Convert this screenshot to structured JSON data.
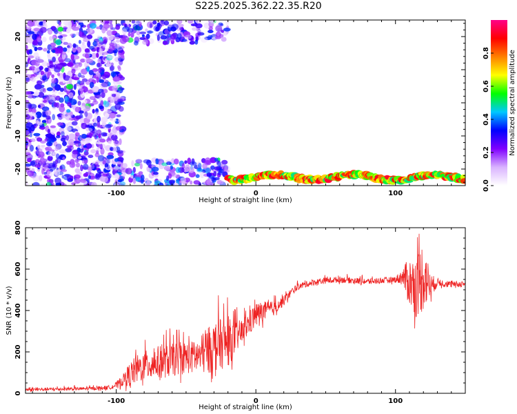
{
  "title": "S225.2025.362.22.35.R20",
  "chart_data": [
    {
      "type": "heatmap",
      "xlabel": "Height of straight line (km)",
      "ylabel": "Frequency (Hz)",
      "xlim": [
        -165,
        150
      ],
      "ylim": [
        -25,
        25
      ],
      "x_ticks": [
        -100,
        0,
        100
      ],
      "y_ticks": [
        -20,
        -10,
        0,
        10,
        20
      ],
      "colorbar": {
        "label": "Normalized spectral amplitude",
        "range": [
          0,
          1
        ],
        "ticks": [
          0.0,
          0.2,
          0.4,
          0.6,
          0.8
        ],
        "colors": [
          "#ffffff",
          "#d9b3ff",
          "#8000ff",
          "#0000ff",
          "#00c8ff",
          "#00ff00",
          "#ffff00",
          "#ff8000",
          "#ff0000",
          "#ff0088"
        ]
      },
      "features": [
        {
          "name": "broadband noise, left region",
          "x_range": [
            -165,
            -95
          ],
          "y_range": [
            -25,
            25
          ],
          "amplitude": 0.15
        },
        {
          "name": "upper noise band",
          "x_range": [
            -95,
            -20
          ],
          "y_range": [
            18,
            25
          ],
          "amplitude": 0.15
        },
        {
          "name": "lower noise band",
          "x_range": [
            -100,
            -20
          ],
          "y_range": [
            -25,
            -17
          ],
          "amplitude": 0.18
        },
        {
          "name": "persistent spectral line",
          "x_range": [
            -20,
            150
          ],
          "y_range": [
            -24,
            -21
          ],
          "amplitude": 0.9
        }
      ]
    },
    {
      "type": "line",
      "xlabel": "Height of straight line (km)",
      "ylabel": "SNR (10 * v/v)",
      "xlim": [
        -165,
        150
      ],
      "ylim": [
        0,
        800
      ],
      "x_ticks": [
        -100,
        0,
        100
      ],
      "y_ticks": [
        0,
        200,
        400,
        600,
        800
      ],
      "series": [
        {
          "name": "SNR",
          "color": "#ee2222",
          "x": [
            -165,
            -140,
            -120,
            -105,
            -100,
            -95,
            -90,
            -85,
            -80,
            -75,
            -70,
            -65,
            -60,
            -55,
            -50,
            -45,
            -40,
            -35,
            -30,
            -25,
            -20,
            -15,
            -10,
            -5,
            0,
            5,
            10,
            15,
            20,
            25,
            30,
            40,
            50,
            60,
            70,
            80,
            90,
            100,
            105,
            110,
            115,
            120,
            125,
            130,
            140,
            150
          ],
          "values": [
            15,
            18,
            20,
            25,
            35,
            55,
            75,
            95,
            110,
            120,
            125,
            130,
            135,
            145,
            150,
            150,
            155,
            170,
            190,
            200,
            210,
            240,
            280,
            320,
            360,
            380,
            390,
            410,
            440,
            480,
            510,
            530,
            540,
            545,
            540,
            535,
            540,
            545,
            550,
            500,
            470,
            520,
            500,
            530,
            520,
            525
          ],
          "noise_amplitude": [
            8,
            8,
            8,
            10,
            15,
            30,
            60,
            70,
            70,
            80,
            80,
            80,
            80,
            80,
            80,
            80,
            90,
            110,
            120,
            120,
            120,
            80,
            60,
            60,
            60,
            50,
            40,
            30,
            25,
            20,
            15,
            15,
            15,
            15,
            15,
            15,
            15,
            15,
            40,
            120,
            150,
            180,
            60,
            20,
            15,
            15
          ]
        }
      ]
    }
  ]
}
